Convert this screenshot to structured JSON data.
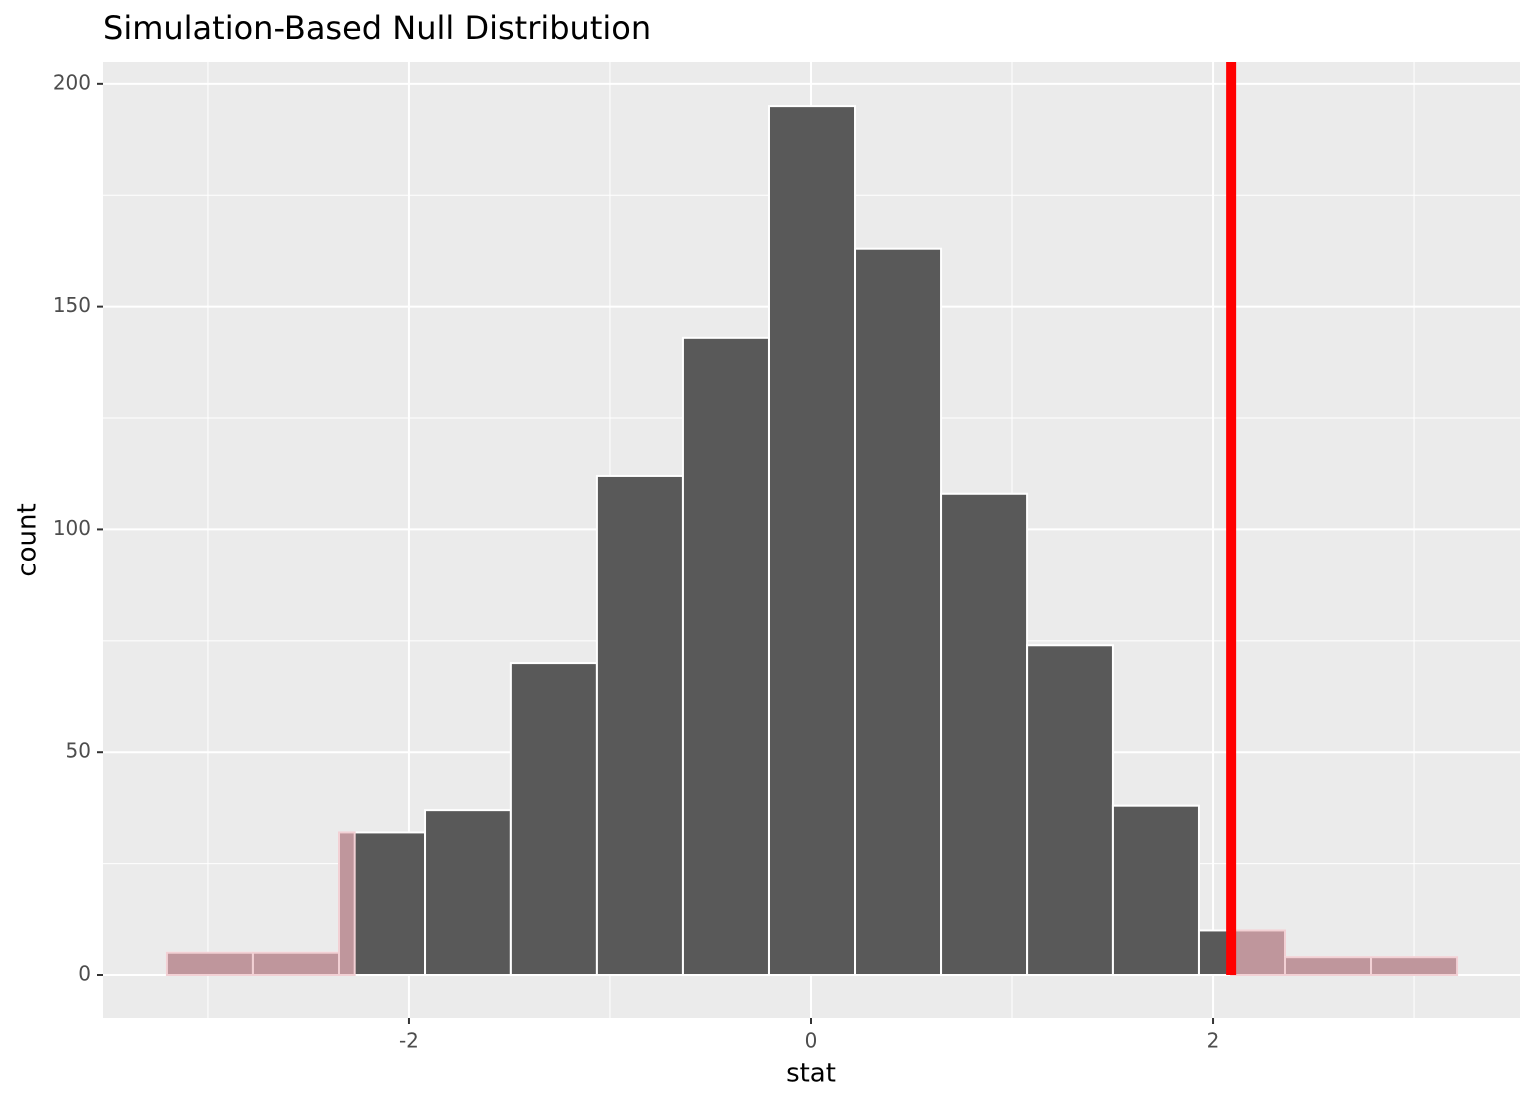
{
  "chart_data": {
    "type": "histogram",
    "title": "Simulation-Based Null Distribution",
    "x_label": "stat",
    "y_label": "count",
    "bins": [
      -3.204,
      -2.776,
      -2.348,
      -1.92,
      -1.493,
      -1.065,
      -0.637,
      -0.209,
      0.219,
      0.647,
      1.075,
      1.502,
      1.93,
      2.358,
      2.786,
      3.214
    ],
    "values": [
      5,
      5,
      32,
      37,
      70,
      112,
      143,
      195,
      163,
      108,
      74,
      38,
      10,
      4,
      4
    ],
    "color": "#595959",
    "shade_color": "#bf969c",
    "line_color": "#ff0000",
    "observed_stat": 2.09,
    "shade_left_limit": -2.27,
    "xlim": [
      -3.522,
      3.527
    ],
    "ylim": [
      -9.65,
      204.9
    ],
    "xticks": [
      -2,
      0,
      2
    ],
    "yticks": [
      0,
      50,
      100,
      150,
      200
    ],
    "grid": true
  }
}
